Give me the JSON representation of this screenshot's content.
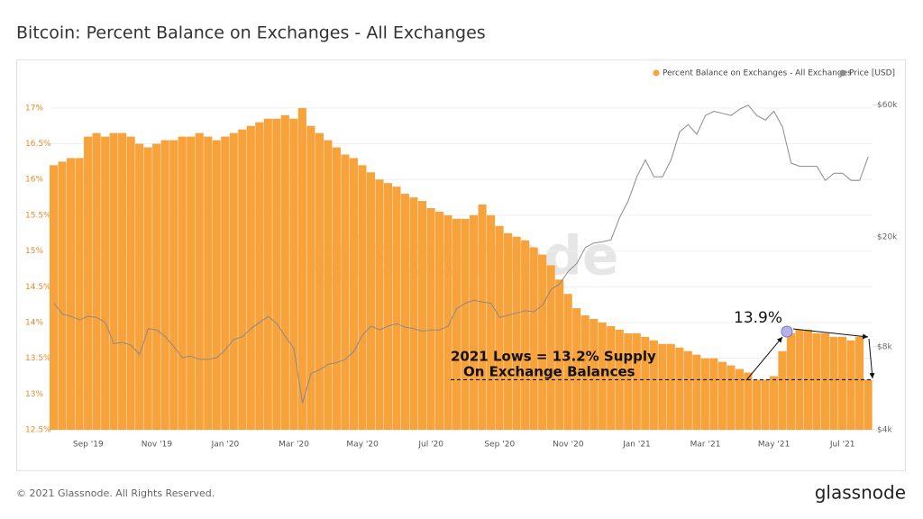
{
  "chart_data": {
    "type": "bar",
    "title": "Bitcoin: Percent Balance on Exchanges - All Exchanges",
    "watermark": "glassnode",
    "categories": [
      null,
      null,
      null,
      null,
      "Sep '19",
      null,
      null,
      null,
      null,
      null,
      null,
      null,
      "Nov '19",
      null,
      null,
      null,
      null,
      null,
      null,
      null,
      "Jan '20",
      null,
      null,
      null,
      null,
      null,
      null,
      null,
      "Mar '20",
      null,
      null,
      null,
      null,
      null,
      null,
      null,
      "May '20",
      null,
      null,
      null,
      null,
      null,
      null,
      null,
      "Jul '20",
      null,
      null,
      null,
      null,
      null,
      null,
      null,
      "Sep '20",
      null,
      null,
      null,
      null,
      null,
      null,
      null,
      "Nov '20",
      null,
      null,
      null,
      null,
      null,
      null,
      null,
      "Jan '21",
      null,
      null,
      null,
      null,
      null,
      null,
      null,
      "Mar '21",
      null,
      null,
      null,
      null,
      null,
      null,
      null,
      "May '21",
      null,
      null,
      null,
      null,
      null,
      null,
      null,
      "Jul '21",
      null,
      null,
      null
    ],
    "series": [
      {
        "name": "Percent Balance on Exchanges - All Exchanges",
        "color": "#f7a23b",
        "values": [
          16.2,
          16.25,
          16.3,
          16.3,
          16.6,
          16.65,
          16.6,
          16.65,
          16.65,
          16.6,
          16.5,
          16.45,
          16.5,
          16.55,
          16.55,
          16.6,
          16.6,
          16.65,
          16.6,
          16.55,
          16.6,
          16.65,
          16.7,
          16.75,
          16.8,
          16.85,
          16.85,
          16.9,
          16.85,
          17.0,
          16.75,
          16.65,
          16.55,
          16.45,
          16.35,
          16.3,
          16.2,
          16.1,
          16.0,
          15.95,
          15.9,
          15.8,
          15.75,
          15.7,
          15.6,
          15.55,
          15.5,
          15.45,
          15.45,
          15.5,
          15.65,
          15.5,
          15.35,
          15.25,
          15.2,
          15.15,
          15.05,
          14.95,
          14.8,
          14.6,
          14.4,
          14.2,
          14.1,
          14.05,
          14.0,
          13.95,
          13.9,
          13.85,
          13.85,
          13.8,
          13.75,
          13.7,
          13.7,
          13.65,
          13.6,
          13.55,
          13.5,
          13.5,
          13.45,
          13.4,
          13.35,
          13.3,
          13.2,
          13.2,
          13.25,
          13.6,
          13.85,
          13.9,
          13.9,
          13.85,
          13.85,
          13.8,
          13.8,
          13.75,
          13.8,
          13.2
        ]
      },
      {
        "name": "Price [USD]",
        "color": "#8a8a8a",
        "type": "line",
        "axis": "y2",
        "values": [
          11500,
          10500,
          10300,
          10000,
          10300,
          10200,
          9800,
          8200,
          8300,
          8100,
          7500,
          9300,
          9200,
          8700,
          8000,
          7300,
          7400,
          7200,
          7200,
          7300,
          7800,
          8500,
          8700,
          9300,
          9800,
          10300,
          9700,
          8700,
          7900,
          5000,
          6400,
          6600,
          6900,
          7000,
          7200,
          7700,
          8800,
          9500,
          9200,
          9500,
          9700,
          9400,
          9300,
          9100,
          9200,
          9200,
          9500,
          11000,
          11500,
          11800,
          11600,
          11500,
          10200,
          10400,
          10600,
          10800,
          10700,
          11300,
          12900,
          13500,
          15000,
          16000,
          18300,
          19000,
          19200,
          19500,
          23500,
          27000,
          33000,
          38000,
          33000,
          33000,
          38000,
          48000,
          51000,
          47000,
          55000,
          57000,
          56000,
          55000,
          58000,
          60000,
          55000,
          53000,
          57000,
          50000,
          37000,
          36000,
          36000,
          36000,
          32000,
          34000,
          34000,
          32000,
          32000,
          39000
        ]
      }
    ],
    "ylim": [
      12.5,
      17.25
    ],
    "yticks": [
      {
        "value": 12.5,
        "label": "12.5%"
      },
      {
        "value": 13,
        "label": "13%"
      },
      {
        "value": 13.5,
        "label": "13.5%"
      },
      {
        "value": 14,
        "label": "14%"
      },
      {
        "value": 14.5,
        "label": "14.5%"
      },
      {
        "value": 15,
        "label": "15%"
      },
      {
        "value": 15.5,
        "label": "15.5%"
      },
      {
        "value": 16,
        "label": "16%"
      },
      {
        "value": 16.5,
        "label": "16.5%"
      },
      {
        "value": 17,
        "label": "17%"
      }
    ],
    "y2lim": [
      4000,
      68000
    ],
    "y2ticks": [
      {
        "value": 4000,
        "label": "$4k"
      },
      {
        "value": 8000,
        "label": "$8k"
      },
      {
        "value": 20000,
        "label": "$20k"
      },
      {
        "value": 60000,
        "label": "$60k"
      }
    ],
    "y2_log": true,
    "grid": true,
    "reference_line": 13.2,
    "annotations": [
      "13.9%",
      "2021 Lows = 13.2% Supply",
      "On Exchange Balances"
    ]
  },
  "footer": {
    "copyright": "© 2021 Glassnode. All Rights Reserved.",
    "logo": "glassnode"
  }
}
